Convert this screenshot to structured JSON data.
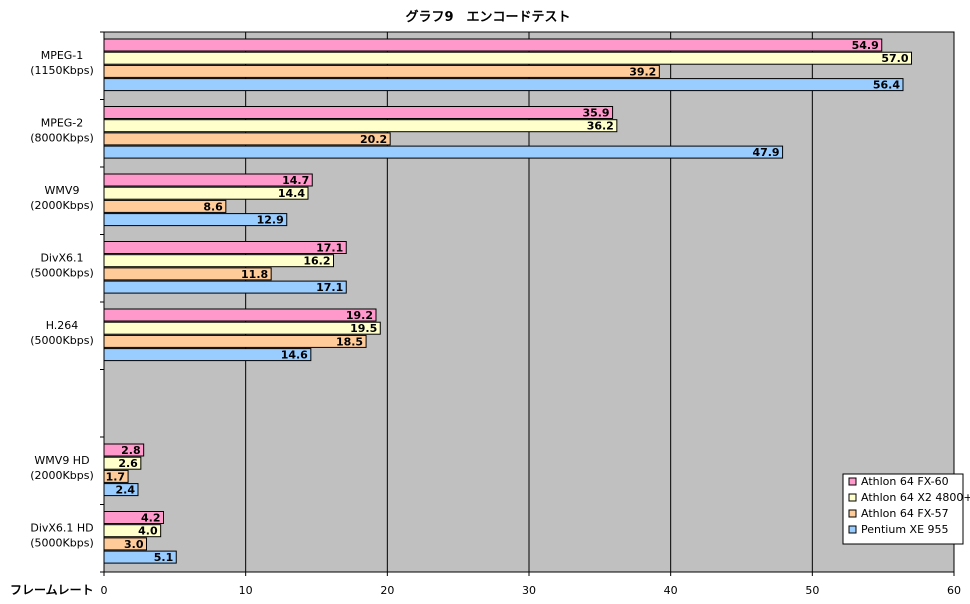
{
  "chart_data": {
    "type": "bar",
    "orientation": "horizontal",
    "title": "グラフ9　エンコードテスト",
    "xlabel": "フレームレート",
    "ylabel": "",
    "xlim": [
      0,
      60
    ],
    "x_ticks": [
      0,
      10,
      20,
      30,
      40,
      50,
      60
    ],
    "grid": true,
    "legend_position": "bottom-right",
    "categories": [
      {
        "line1": "MPEG-1",
        "line2": "(1150Kbps)",
        "slot": 0
      },
      {
        "line1": "MPEG-2",
        "line2": "(8000Kbps)",
        "slot": 1
      },
      {
        "line1": "WMV9",
        "line2": "(2000Kbps)",
        "slot": 2
      },
      {
        "line1": "DivX6.1",
        "line2": "(5000Kbps)",
        "slot": 3
      },
      {
        "line1": "H.264",
        "line2": "(5000Kbps)",
        "slot": 4
      },
      {
        "line1": "WMV9 HD",
        "line2": "(2000Kbps)",
        "slot": 6
      },
      {
        "line1": "DivX6.1 HD",
        "line2": "(5000Kbps)",
        "slot": 7
      }
    ],
    "series": [
      {
        "name": "Athlon 64 FX-60",
        "color": "#ff99cc",
        "values": [
          54.9,
          35.9,
          14.7,
          17.1,
          19.2,
          2.8,
          4.2
        ]
      },
      {
        "name": "Athlon 64 X2 4800+",
        "color": "#ffffcc",
        "values": [
          57.0,
          36.2,
          14.4,
          16.2,
          19.5,
          2.6,
          4.0
        ]
      },
      {
        "name": "Athlon 64 FX-57",
        "color": "#ffcc99",
        "values": [
          39.2,
          20.2,
          8.6,
          11.8,
          18.5,
          1.7,
          3.0
        ]
      },
      {
        "name": "Pentium XE 955",
        "color": "#99ccff",
        "values": [
          56.4,
          47.9,
          12.9,
          17.1,
          14.6,
          2.4,
          5.1
        ]
      }
    ],
    "plot_background": "#c0c0c0"
  }
}
